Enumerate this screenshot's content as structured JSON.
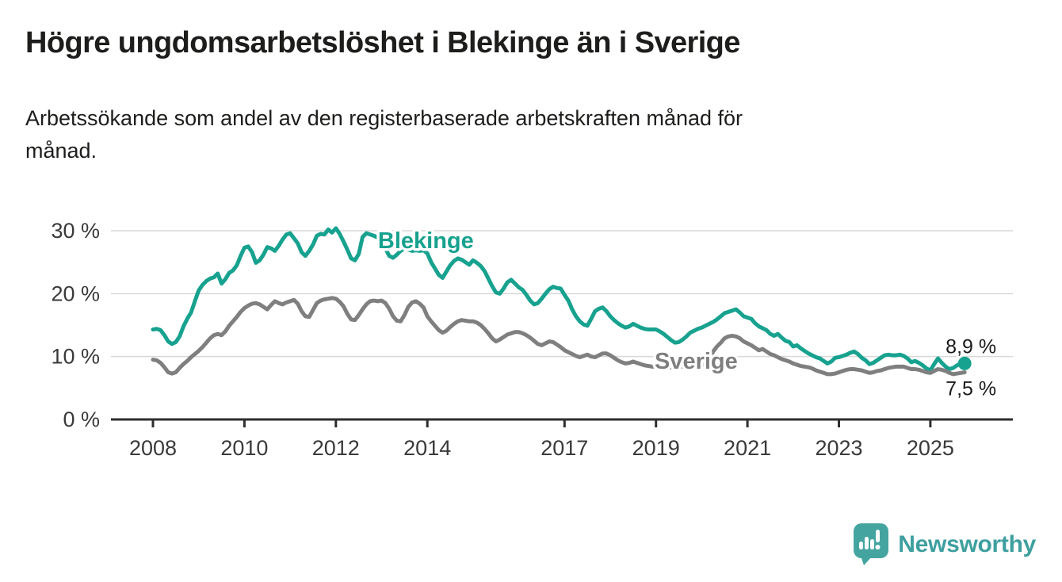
{
  "header": {
    "title": "Högre ungdomsarbetslöshet i Blekinge än i Sverige",
    "subtitle_line1": "Arbetssökande som andel av den registerbaserade arbetskraften månad för",
    "subtitle_line2": "månad."
  },
  "footer": {
    "brand": "Newsworthy"
  },
  "colors": {
    "accent_teal": "#17a28f",
    "neutral_gray": "#7f7f7f",
    "logo_teal": "#3f9f9f",
    "text_dark": "#1d1d1b"
  },
  "chart_data": {
    "type": "line",
    "title": "Högre ungdomsarbetslöshet i Blekinge än i Sverige",
    "subtitle": "Arbetssökande som andel av den registerbaserade arbetskraften månad för månad.",
    "unit": "%",
    "frequency": "monthly",
    "x_start": "2008-01",
    "x_end": "2025-10",
    "ylim": [
      0,
      31.5
    ],
    "grid": "horizontal",
    "legend": "inline-labels",
    "style": {
      "grid_color": "#d8d8d8",
      "axis_color": "#2e2e2e",
      "tick_color": "#3a3a3a",
      "annotation_color": "#1a1a1a"
    },
    "y_ticks": [
      {
        "value": 0,
        "label": "0 %"
      },
      {
        "value": 10,
        "label": "10 %"
      },
      {
        "value": 20,
        "label": "20 %"
      },
      {
        "value": 30,
        "label": "30 %"
      }
    ],
    "x_ticks": [
      {
        "year": 2008,
        "label": "2008"
      },
      {
        "year": 2010,
        "label": "2010"
      },
      {
        "year": 2012,
        "label": "2012"
      },
      {
        "year": 2014,
        "label": "2014"
      },
      {
        "year": 2017,
        "label": "2017"
      },
      {
        "year": 2019,
        "label": "2019"
      },
      {
        "year": 2021,
        "label": "2021"
      },
      {
        "year": 2023,
        "label": "2023"
      },
      {
        "year": 2025,
        "label": "2025"
      }
    ],
    "series": [
      {
        "name": "Blekinge",
        "color": "#17a28f",
        "end_dot": true,
        "annotation": "8,9 %",
        "annotation_side": "above",
        "label_pos": {
          "year": 2012.92,
          "value": 27.2
        },
        "values": [
          14.3,
          14.4,
          14.2,
          13.4,
          12.4,
          12.0,
          12.3,
          13.2,
          14.8,
          16.0,
          17.0,
          18.8,
          20.5,
          21.4,
          22.0,
          22.4,
          22.6,
          23.2,
          21.6,
          22.3,
          23.3,
          23.7,
          24.5,
          26.0,
          27.3,
          27.5,
          26.6,
          24.9,
          25.3,
          26.2,
          27.4,
          27.2,
          26.8,
          27.6,
          28.6,
          29.4,
          29.6,
          28.8,
          28.0,
          26.6,
          26.0,
          26.8,
          27.8,
          29.2,
          29.5,
          29.4,
          30.2,
          29.7,
          30.4,
          29.5,
          28.3,
          27.0,
          25.6,
          25.3,
          26.3,
          29.0,
          29.6,
          29.4,
          29.2,
          28.9,
          28.4,
          27.2,
          26.0,
          25.7,
          26.2,
          26.8,
          27.2,
          27.0,
          26.8,
          26.9,
          26.8,
          26.9,
          26.4,
          25.0,
          24.0,
          23.0,
          22.5,
          23.5,
          24.5,
          25.2,
          25.6,
          25.4,
          25.0,
          24.6,
          25.3,
          24.9,
          24.4,
          23.6,
          22.4,
          21.2,
          20.2,
          20.0,
          20.8,
          21.8,
          22.2,
          21.6,
          21.0,
          20.6,
          19.8,
          18.9,
          18.3,
          18.5,
          19.2,
          20.0,
          20.7,
          21.1,
          20.9,
          20.8,
          19.8,
          18.9,
          17.5,
          16.4,
          15.6,
          15.1,
          14.9,
          16.0,
          17.2,
          17.6,
          17.8,
          17.2,
          16.4,
          15.8,
          15.3,
          14.9,
          14.6,
          14.8,
          15.2,
          14.9,
          14.6,
          14.4,
          14.3,
          14.3,
          14.3,
          14.0,
          13.6,
          13.1,
          12.6,
          12.2,
          12.3,
          12.7,
          13.2,
          13.8,
          14.1,
          14.4,
          14.6,
          14.9,
          15.2,
          15.5,
          15.9,
          16.4,
          16.9,
          17.1,
          17.3,
          17.5,
          17.0,
          16.4,
          16.2,
          16.0,
          15.3,
          14.8,
          14.5,
          14.2,
          13.6,
          13.3,
          13.6,
          13.0,
          12.5,
          12.3,
          11.6,
          11.8,
          11.3,
          10.9,
          10.5,
          10.2,
          9.9,
          9.7,
          9.3,
          8.9,
          9.2,
          9.8,
          9.9,
          10.1,
          10.3,
          10.6,
          10.8,
          10.4,
          9.8,
          9.4,
          8.8,
          9.0,
          9.4,
          9.8,
          10.2,
          10.3,
          10.2,
          10.2,
          10.3,
          10.1,
          9.7,
          9.1,
          9.3,
          9.0,
          8.6,
          8.1,
          7.8,
          8.8,
          9.7,
          9.0,
          8.4,
          8.0,
          8.2,
          8.6,
          8.9,
          8.9
        ]
      },
      {
        "name": "Sverige",
        "color": "#7f7f7f",
        "end_dot": false,
        "annotation": "7,5 %",
        "annotation_side": "below",
        "label_pos": {
          "year": 2018.97,
          "value": 8.07
        },
        "values": [
          9.5,
          9.4,
          9.0,
          8.3,
          7.5,
          7.3,
          7.5,
          8.2,
          8.8,
          9.3,
          9.9,
          10.4,
          10.9,
          11.5,
          12.2,
          12.9,
          13.4,
          13.6,
          13.4,
          14.0,
          14.9,
          15.6,
          16.3,
          17.1,
          17.7,
          18.1,
          18.4,
          18.5,
          18.3,
          17.9,
          17.5,
          18.2,
          18.8,
          18.5,
          18.3,
          18.6,
          18.8,
          19.0,
          18.4,
          17.2,
          16.4,
          16.3,
          17.4,
          18.5,
          18.9,
          19.1,
          19.2,
          19.3,
          19.2,
          18.7,
          18.0,
          16.8,
          15.9,
          15.8,
          16.6,
          17.5,
          18.3,
          18.8,
          18.9,
          18.8,
          18.9,
          18.5,
          17.6,
          16.4,
          15.7,
          15.6,
          16.6,
          17.9,
          18.6,
          18.8,
          18.4,
          17.8,
          16.4,
          15.6,
          14.9,
          14.2,
          13.8,
          14.1,
          14.7,
          15.2,
          15.6,
          15.8,
          15.7,
          15.6,
          15.6,
          15.4,
          15.0,
          14.4,
          13.7,
          12.9,
          12.4,
          12.7,
          13.1,
          13.5,
          13.7,
          13.9,
          13.9,
          13.7,
          13.4,
          13.0,
          12.5,
          12.0,
          11.8,
          12.1,
          12.4,
          12.3,
          11.9,
          11.5,
          11.0,
          10.7,
          10.4,
          10.1,
          9.9,
          10.1,
          10.3,
          10.0,
          9.9,
          10.2,
          10.5,
          10.5,
          10.2,
          9.8,
          9.4,
          9.1,
          8.9,
          9.0,
          9.2,
          9.0,
          8.8,
          8.6,
          8.5,
          8.4,
          8.4,
          8.3,
          8.2,
          8.2,
          8.3,
          8.4,
          8.5,
          8.4,
          8.3,
          8.3,
          8.4,
          8.5,
          8.6,
          8.8,
          9.6,
          10.8,
          11.6,
          12.2,
          12.9,
          13.2,
          13.3,
          13.2,
          12.9,
          12.4,
          12.1,
          11.8,
          11.4,
          11.0,
          11.2,
          10.8,
          10.4,
          10.2,
          9.9,
          9.6,
          9.4,
          9.2,
          8.9,
          8.7,
          8.5,
          8.4,
          8.3,
          8.1,
          7.8,
          7.6,
          7.4,
          7.2,
          7.2,
          7.3,
          7.5,
          7.7,
          7.9,
          8.0,
          8.0,
          7.9,
          7.8,
          7.6,
          7.4,
          7.5,
          7.7,
          7.8,
          8.0,
          8.2,
          8.3,
          8.4,
          8.4,
          8.4,
          8.2,
          8.0,
          8.0,
          7.9,
          7.7,
          7.5,
          7.4,
          7.7,
          8.0,
          7.9,
          7.7,
          7.4,
          7.2,
          7.3,
          7.4,
          7.5
        ]
      }
    ]
  }
}
